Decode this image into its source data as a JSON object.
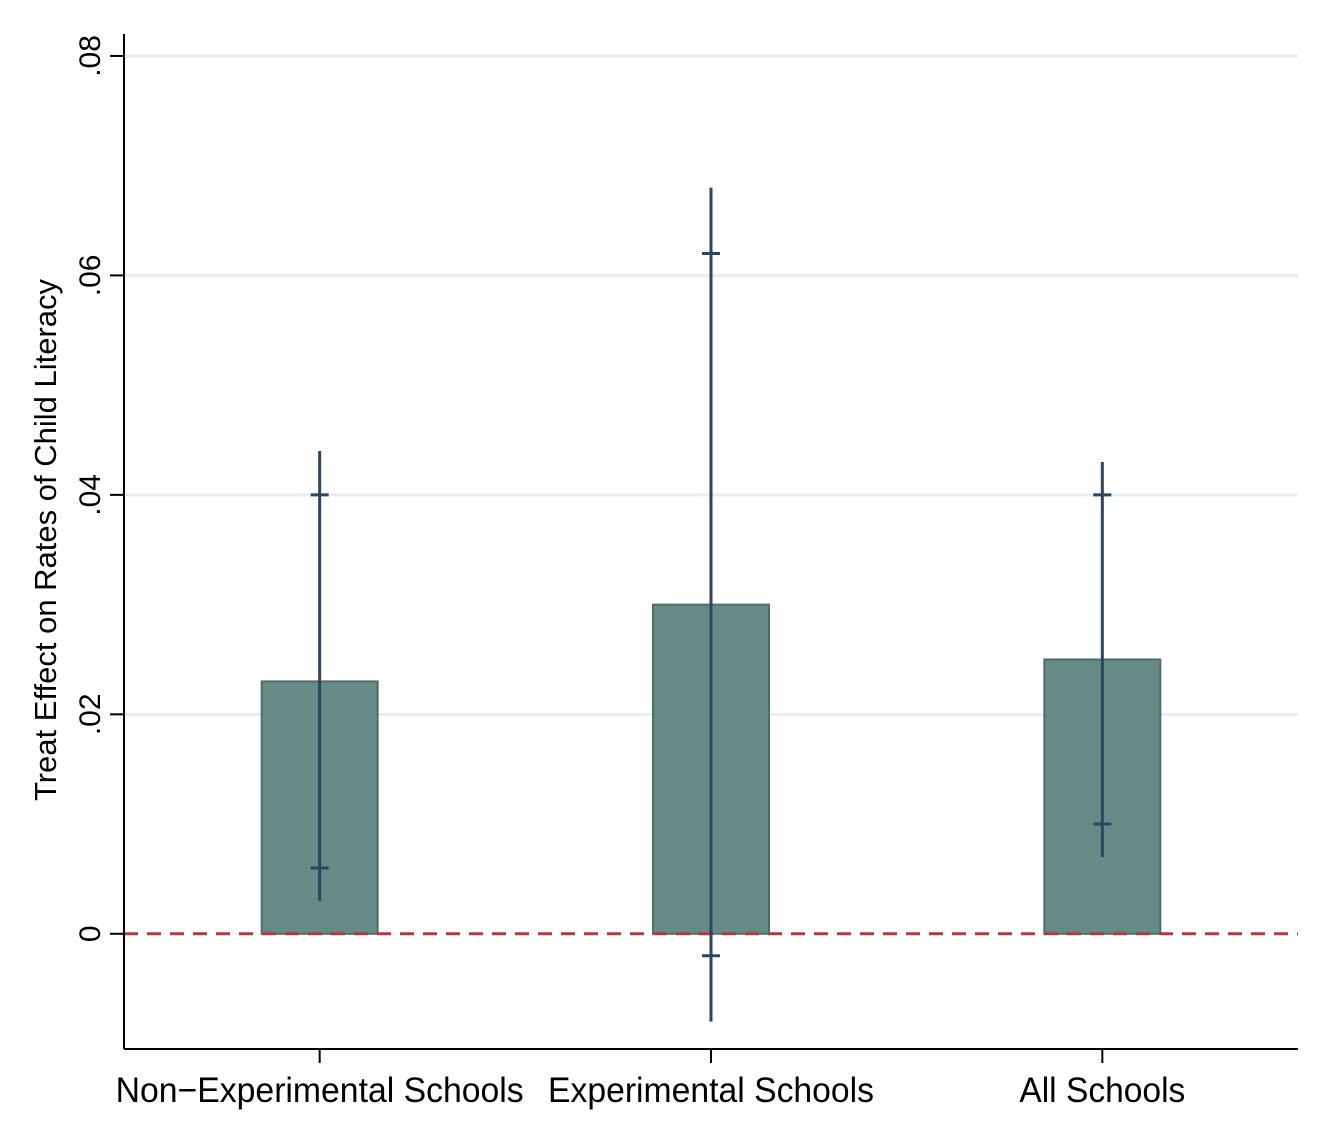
{
  "chart_data": {
    "type": "bar",
    "title": "",
    "xlabel": "",
    "ylabel": "Treat Effect on Rates of Child Literacy",
    "categories": [
      "Non−Experimental Schools",
      "Experimental Schools",
      "All Schools"
    ],
    "values": [
      0.023,
      0.03,
      0.025
    ],
    "ci_inner": [
      [
        0.006,
        0.04
      ],
      [
        -0.002,
        0.062
      ],
      [
        0.01,
        0.04
      ]
    ],
    "ci_outer": [
      [
        0.003,
        0.044
      ],
      [
        -0.008,
        0.068
      ],
      [
        0.007,
        0.043
      ]
    ],
    "ylim": [
      -0.0105,
      0.082
    ],
    "yticks": [
      0,
      0.02,
      0.04,
      0.06,
      0.08
    ],
    "ytick_labels": [
      "0",
      ".02",
      ".04",
      ".06",
      ".08"
    ],
    "reference_line": 0,
    "grid": true,
    "legend": "none",
    "colors": {
      "bar_fill": "#668a86",
      "bar_stroke": "#4e6e6a",
      "error_bar": "#2c4560",
      "reference_line": "#b03a3e",
      "grid": "#e8eeee",
      "axis": "#000000"
    }
  }
}
